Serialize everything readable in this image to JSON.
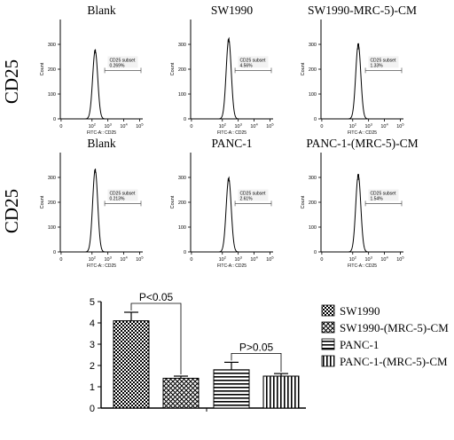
{
  "chart_data": [
    {
      "type": "histogram",
      "row_label": "CD25",
      "panels": [
        {
          "title": "Blank",
          "gate_name": "CD25 subset",
          "gate_value": "0.269%",
          "peak_count": 275,
          "peak_log": 2.2
        },
        {
          "title": "SW1990",
          "gate_name": "CD25 subset",
          "gate_value": "4.56%",
          "peak_count": 320,
          "peak_log": 2.4
        },
        {
          "title": "SW1990-MRC-5)-CM",
          "gate_name": "CD25 subset",
          "gate_value": "1.33%",
          "peak_count": 300,
          "peak_log": 2.35
        }
      ],
      "xlabel": "FITC-A:: CD25",
      "ylabel": "Count",
      "x_ticks": [
        "0",
        "10",
        "10",
        "10",
        "10",
        "10"
      ],
      "x_tick_sups": [
        "",
        "2",
        "3",
        "4",
        "5",
        ""
      ],
      "y_ticks": [
        "0",
        "100",
        "200",
        "300"
      ],
      "y_tick_values": [
        0,
        100,
        200,
        300
      ],
      "ylim": [
        0,
        400
      ]
    },
    {
      "type": "histogram",
      "row_label": "CD25",
      "panels": [
        {
          "title": "Blank",
          "gate_name": "CD25 subset",
          "gate_value": "0.213%",
          "peak_count": 330,
          "peak_log": 2.2
        },
        {
          "title": "PANC-1",
          "gate_name": "CD25 subset",
          "gate_value": "2.61%",
          "peak_count": 295,
          "peak_log": 2.4
        },
        {
          "title": "PANC-1-(MRC-5)-CM",
          "gate_name": "CD25 subset",
          "gate_value": "1.54%",
          "peak_count": 310,
          "peak_log": 2.35
        }
      ],
      "xlabel": "FITC-A:: CD25",
      "ylabel": "Count",
      "x_ticks": [
        "0",
        "10",
        "10",
        "10",
        "10",
        "10"
      ],
      "x_tick_sups": [
        "",
        "2",
        "3",
        "4",
        "5",
        ""
      ],
      "y_ticks": [
        "0",
        "100",
        "200",
        "300"
      ],
      "y_tick_values": [
        0,
        100,
        200,
        300
      ],
      "ylim": [
        0,
        400
      ]
    },
    {
      "type": "bar",
      "categories": [
        "SW1990",
        "SW1990-(MRC-5)-CM",
        "PANC-1",
        "PANC-1-(MRC-5)-CM"
      ],
      "values": [
        4.1,
        1.4,
        1.8,
        1.5
      ],
      "errors": [
        0.4,
        0.1,
        0.35,
        0.12
      ],
      "patterns": [
        "checker",
        "diagonal",
        "horizontal",
        "vertical"
      ],
      "y_ticks": [
        "0",
        "1",
        "2",
        "3",
        "4",
        "5"
      ],
      "y_tick_values": [
        0,
        1,
        2,
        3,
        4,
        5
      ],
      "ylim": [
        0,
        5
      ],
      "xlabel": "",
      "ylabel": "",
      "legend_position": "right",
      "annotations": [
        {
          "text": "P<0.05",
          "from": 0,
          "to": 1
        },
        {
          "text": "P>0.05",
          "from": 2,
          "to": 3
        }
      ]
    }
  ]
}
